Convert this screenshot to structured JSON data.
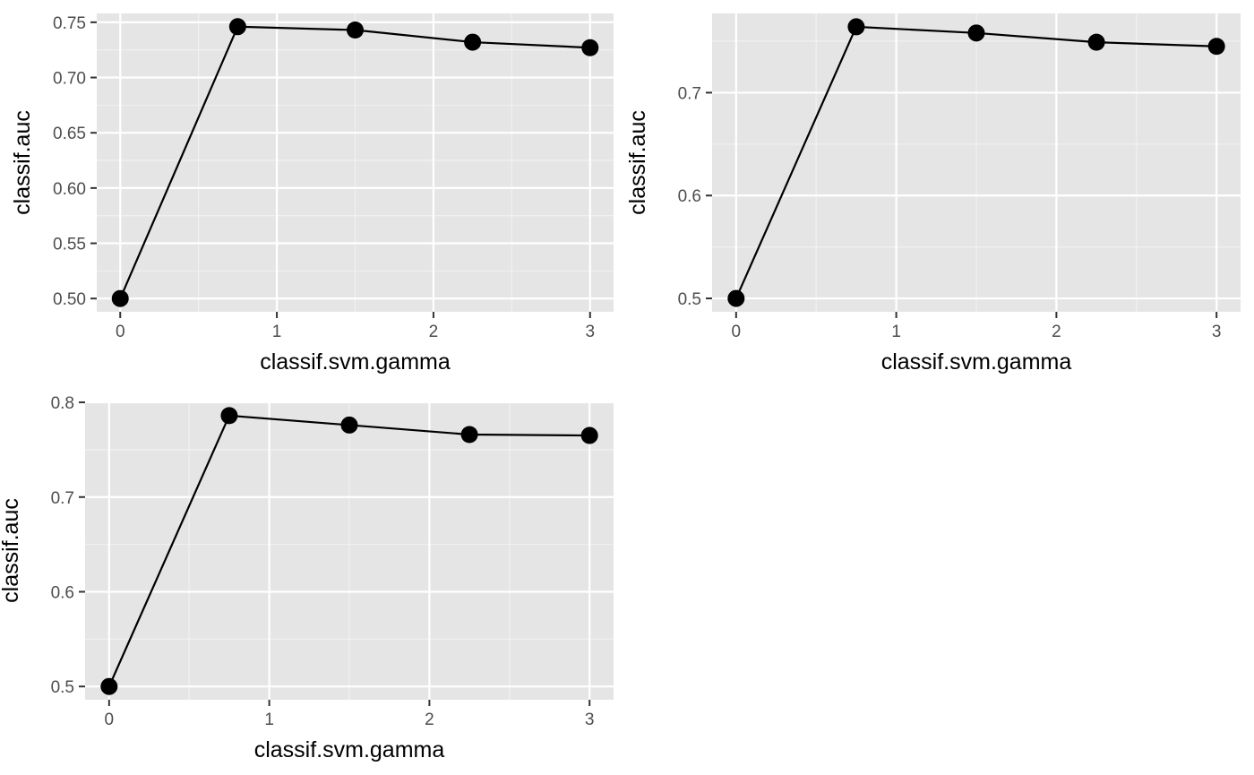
{
  "chart_data": [
    {
      "type": "line",
      "xlabel": "classif.svm.gamma",
      "ylabel": "classif.auc",
      "x": [
        0,
        0.75,
        1.5,
        2.25,
        3
      ],
      "series": [
        {
          "values": [
            0.5,
            0.746,
            0.743,
            0.732,
            0.727
          ]
        }
      ],
      "xlim": [
        -0.15,
        3.15
      ],
      "ylim": [
        0.488,
        0.758
      ],
      "x_ticks": [
        0,
        1,
        2,
        3
      ],
      "x_tick_labels": [
        "0",
        "1",
        "2",
        "3"
      ],
      "y_ticks": [
        0.5,
        0.55,
        0.6,
        0.65,
        0.7,
        0.75
      ],
      "y_tick_labels": [
        "0.50",
        "0.55",
        "0.60",
        "0.65",
        "0.70",
        "0.75"
      ],
      "grid": true,
      "panel_background": "#e5e5e5",
      "marker_color": "#000000"
    },
    {
      "type": "line",
      "xlabel": "classif.svm.gamma",
      "ylabel": "classif.auc",
      "x": [
        0,
        0.75,
        1.5,
        2.25,
        3
      ],
      "series": [
        {
          "values": [
            0.5,
            0.764,
            0.758,
            0.749,
            0.745
          ]
        }
      ],
      "xlim": [
        -0.15,
        3.15
      ],
      "ylim": [
        0.487,
        0.777
      ],
      "x_ticks": [
        0,
        1,
        2,
        3
      ],
      "x_tick_labels": [
        "0",
        "1",
        "2",
        "3"
      ],
      "y_ticks": [
        0.5,
        0.6,
        0.7
      ],
      "y_tick_labels": [
        "0.5",
        "0.6",
        "0.7"
      ],
      "grid": true,
      "panel_background": "#e5e5e5",
      "marker_color": "#000000"
    },
    {
      "type": "line",
      "xlabel": "classif.svm.gamma",
      "ylabel": "classif.auc",
      "x": [
        0,
        0.75,
        1.5,
        2.25,
        3
      ],
      "series": [
        {
          "values": [
            0.5,
            0.786,
            0.776,
            0.766,
            0.765
          ]
        }
      ],
      "xlim": [
        -0.15,
        3.15
      ],
      "ylim": [
        0.486,
        0.801
      ],
      "x_ticks": [
        0,
        1,
        2,
        3
      ],
      "x_tick_labels": [
        "0",
        "1",
        "2",
        "3"
      ],
      "y_ticks": [
        0.5,
        0.6,
        0.7,
        0.8
      ],
      "y_tick_labels": [
        "0.5",
        "0.6",
        "0.7",
        "0.8"
      ],
      "grid": true,
      "panel_background": "#e5e5e5",
      "marker_color": "#000000"
    }
  ]
}
